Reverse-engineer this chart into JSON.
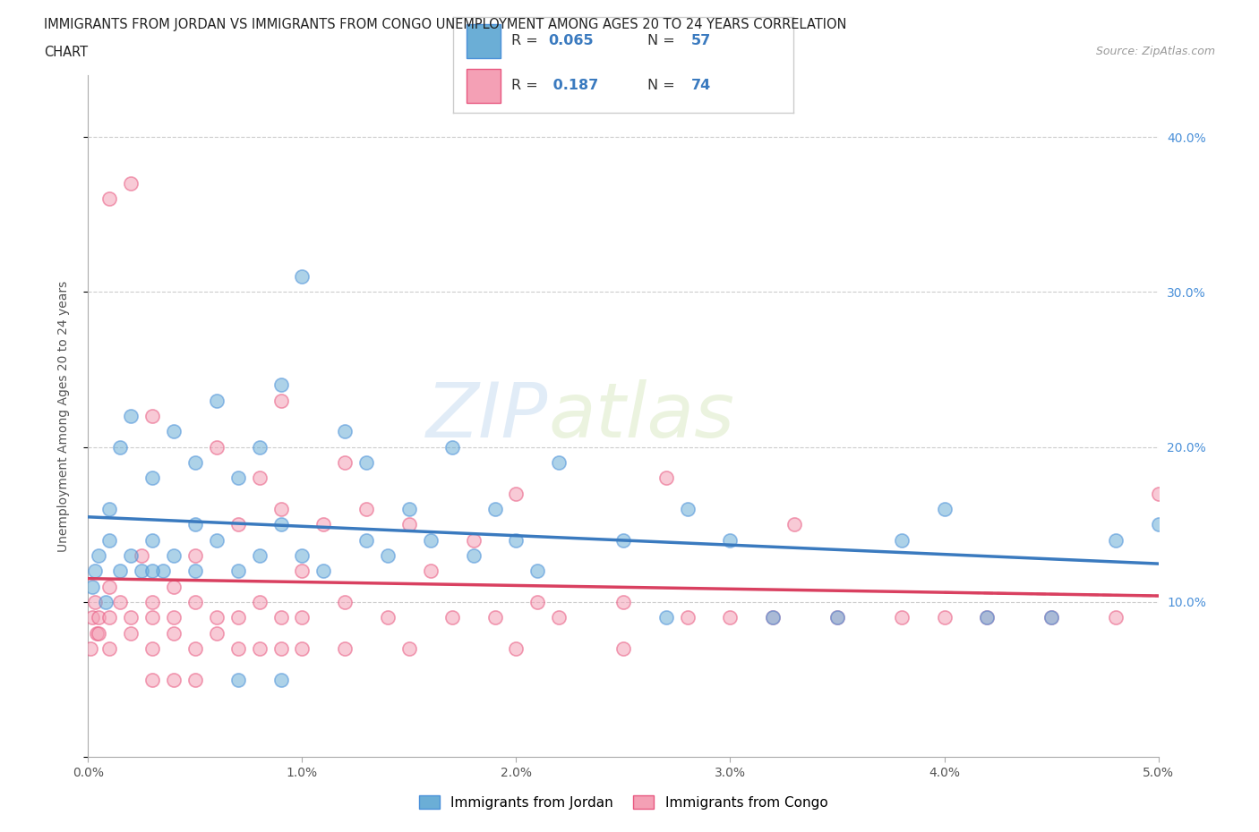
{
  "title_line1": "IMMIGRANTS FROM JORDAN VS IMMIGRANTS FROM CONGO UNEMPLOYMENT AMONG AGES 20 TO 24 YEARS CORRELATION",
  "title_line2": "CHART",
  "source_text": "Source: ZipAtlas.com",
  "ylabel": "Unemployment Among Ages 20 to 24 years",
  "xlim": [
    0.0,
    0.05
  ],
  "ylim": [
    0.0,
    0.44
  ],
  "xticks": [
    0.0,
    0.01,
    0.02,
    0.03,
    0.04,
    0.05
  ],
  "xticklabels": [
    "0.0%",
    "1.0%",
    "2.0%",
    "3.0%",
    "4.0%",
    "5.0%"
  ],
  "yticks": [
    0.0,
    0.1,
    0.2,
    0.3,
    0.4
  ],
  "yticklabels": [
    "",
    "10.0%",
    "20.0%",
    "30.0%",
    "40.0%"
  ],
  "jordan_color": "#6baed6",
  "congo_color": "#f4a0b5",
  "jordan_edge_color": "#4a90d9",
  "congo_edge_color": "#e85880",
  "jordan_line_color": "#3a7abf",
  "congo_line_color": "#d94060",
  "jordan_R": 0.065,
  "jordan_N": 57,
  "congo_R": 0.187,
  "congo_N": 74,
  "watermark1": "ZIP",
  "watermark2": "atlas",
  "background_color": "#ffffff",
  "grid_color": "#cccccc",
  "right_tick_color": "#4a90d9",
  "jordan_scatter_x": [
    0.0003,
    0.0005,
    0.001,
    0.001,
    0.0015,
    0.002,
    0.002,
    0.0025,
    0.003,
    0.003,
    0.0035,
    0.004,
    0.004,
    0.005,
    0.005,
    0.006,
    0.006,
    0.007,
    0.007,
    0.008,
    0.008,
    0.009,
    0.009,
    0.01,
    0.01,
    0.011,
    0.012,
    0.013,
    0.013,
    0.014,
    0.015,
    0.016,
    0.017,
    0.018,
    0.019,
    0.02,
    0.021,
    0.022,
    0.025,
    0.027,
    0.028,
    0.03,
    0.032,
    0.035,
    0.038,
    0.04,
    0.042,
    0.045,
    0.048,
    0.05,
    0.0002,
    0.0008,
    0.0015,
    0.003,
    0.005,
    0.007,
    0.009
  ],
  "jordan_scatter_y": [
    0.12,
    0.13,
    0.14,
    0.16,
    0.2,
    0.13,
    0.22,
    0.12,
    0.18,
    0.14,
    0.12,
    0.21,
    0.13,
    0.15,
    0.19,
    0.14,
    0.23,
    0.12,
    0.18,
    0.13,
    0.2,
    0.15,
    0.24,
    0.13,
    0.31,
    0.12,
    0.21,
    0.14,
    0.19,
    0.13,
    0.16,
    0.14,
    0.2,
    0.13,
    0.16,
    0.14,
    0.12,
    0.19,
    0.14,
    0.09,
    0.16,
    0.14,
    0.09,
    0.09,
    0.14,
    0.16,
    0.09,
    0.09,
    0.14,
    0.15,
    0.11,
    0.1,
    0.12,
    0.12,
    0.12,
    0.05,
    0.05
  ],
  "congo_scatter_x": [
    0.0002,
    0.0003,
    0.0004,
    0.0005,
    0.001,
    0.001,
    0.001,
    0.0015,
    0.002,
    0.002,
    0.0025,
    0.003,
    0.003,
    0.003,
    0.004,
    0.004,
    0.005,
    0.005,
    0.006,
    0.006,
    0.007,
    0.007,
    0.008,
    0.008,
    0.009,
    0.009,
    0.009,
    0.01,
    0.01,
    0.011,
    0.012,
    0.012,
    0.013,
    0.014,
    0.015,
    0.016,
    0.017,
    0.018,
    0.019,
    0.02,
    0.021,
    0.022,
    0.025,
    0.027,
    0.028,
    0.03,
    0.032,
    0.033,
    0.035,
    0.038,
    0.04,
    0.042,
    0.045,
    0.048,
    0.05,
    0.0001,
    0.0005,
    0.001,
    0.002,
    0.003,
    0.004,
    0.005,
    0.006,
    0.007,
    0.008,
    0.009,
    0.01,
    0.012,
    0.015,
    0.02,
    0.025,
    0.003,
    0.004,
    0.005
  ],
  "congo_scatter_y": [
    0.09,
    0.1,
    0.08,
    0.09,
    0.11,
    0.09,
    0.36,
    0.1,
    0.37,
    0.09,
    0.13,
    0.1,
    0.09,
    0.22,
    0.11,
    0.09,
    0.13,
    0.1,
    0.09,
    0.2,
    0.15,
    0.09,
    0.18,
    0.1,
    0.16,
    0.09,
    0.23,
    0.12,
    0.09,
    0.15,
    0.1,
    0.19,
    0.16,
    0.09,
    0.15,
    0.12,
    0.09,
    0.14,
    0.09,
    0.17,
    0.1,
    0.09,
    0.1,
    0.18,
    0.09,
    0.09,
    0.09,
    0.15,
    0.09,
    0.09,
    0.09,
    0.09,
    0.09,
    0.09,
    0.17,
    0.07,
    0.08,
    0.07,
    0.08,
    0.07,
    0.08,
    0.07,
    0.08,
    0.07,
    0.07,
    0.07,
    0.07,
    0.07,
    0.07,
    0.07,
    0.07,
    0.05,
    0.05,
    0.05
  ]
}
